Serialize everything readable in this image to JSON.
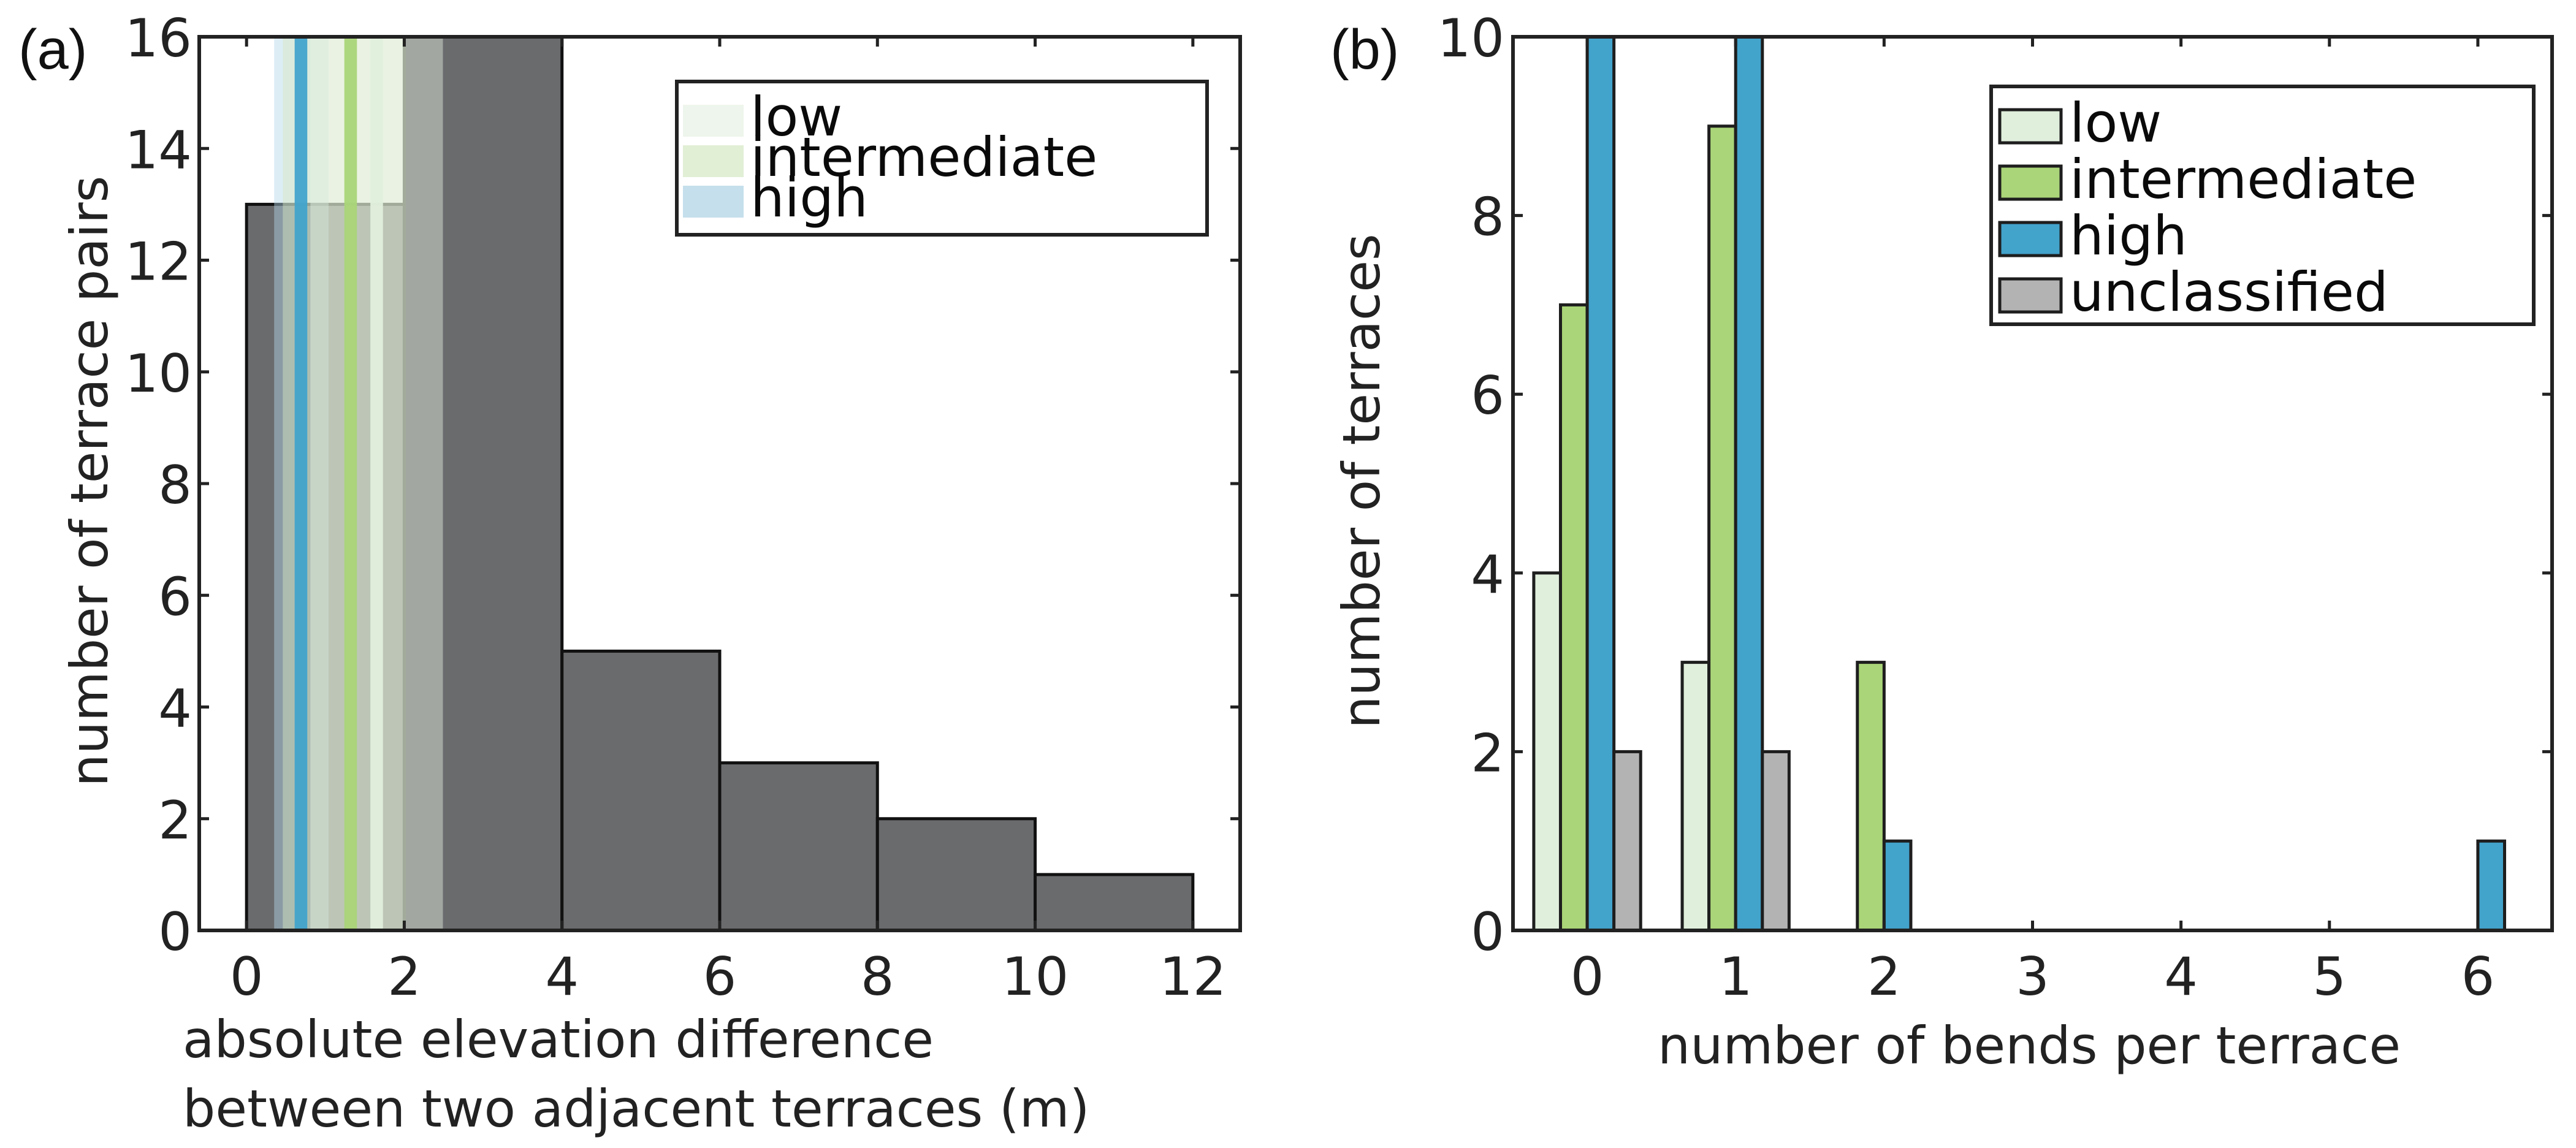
{
  "chart_data": [
    {
      "panel": "(a)",
      "type": "bar",
      "subtype": "histogram",
      "title": "",
      "xlabel_lines": [
        "absolute elevation difference",
        "between two adjacent terraces (m)"
      ],
      "ylabel": "number of terrace pairs",
      "xlim": [
        -0.6,
        12.6
      ],
      "ylim": [
        0,
        16
      ],
      "xticks": [
        0,
        2,
        4,
        6,
        8,
        10,
        12
      ],
      "yticks": [
        0,
        2,
        4,
        6,
        8,
        10,
        12,
        14,
        16
      ],
      "grid": false,
      "bins": [
        {
          "from": 0,
          "to": 2,
          "count": 13
        },
        {
          "from": 2,
          "to": 4,
          "count": 16
        },
        {
          "from": 4,
          "to": 6,
          "count": 5
        },
        {
          "from": 6,
          "to": 8,
          "count": 3
        },
        {
          "from": 8,
          "to": 10,
          "count": 2
        },
        {
          "from": 10,
          "to": 12,
          "count": 1
        }
      ],
      "bar_color": "#6a6b6d",
      "ranges": [
        {
          "name": "high",
          "from": 0.35,
          "to": 1.04,
          "center_from": 0.61,
          "center_to": 0.77,
          "band_color": "#b4d6e9",
          "line_color": "#42a3cb"
        },
        {
          "name": "intermediate",
          "from": 0.46,
          "to": 2.02,
          "center_from": 1.24,
          "center_to": 1.4,
          "band_color": "#d7e9c0",
          "line_color": "#aad578"
        },
        {
          "name": "low",
          "from": 0.81,
          "to": 2.49,
          "center_from": 1.57,
          "center_to": 1.73,
          "band_color": "#e7f1e2",
          "line_color": "#e0efdc"
        }
      ],
      "legend": {
        "placement": "top-right",
        "entries": [
          {
            "label": "low",
            "color": "#eef5ec"
          },
          {
            "label": "intermediate",
            "color": "#e1efd5"
          },
          {
            "label": "high",
            "color": "#c5dfec"
          }
        ]
      }
    },
    {
      "panel": "(b)",
      "type": "bar",
      "subtype": "grouped",
      "title": "",
      "xlabel": "number of bends per terrace",
      "ylabel": "number of terraces",
      "xlim": [
        -0.5,
        6.5
      ],
      "ylim": [
        0,
        10
      ],
      "categories": [
        0,
        1,
        2,
        3,
        4,
        5,
        6
      ],
      "xticks": [
        0,
        1,
        2,
        3,
        4,
        5,
        6
      ],
      "yticks": [
        0,
        2,
        4,
        6,
        8,
        10
      ],
      "grid": false,
      "series": [
        {
          "name": "low",
          "color": "#e0efdc",
          "values": [
            4,
            3,
            0,
            0,
            0,
            0,
            0
          ]
        },
        {
          "name": "intermediate",
          "color": "#aad578",
          "values": [
            7,
            9,
            3,
            0,
            0,
            0,
            0
          ]
        },
        {
          "name": "high",
          "color": "#42a3cb",
          "values": [
            10,
            10,
            1,
            0,
            0,
            0,
            1
          ]
        },
        {
          "name": "unclassified",
          "color": "#b3b3b3",
          "values": [
            2,
            2,
            0,
            0,
            0,
            0,
            0
          ]
        }
      ],
      "clipped_note": "high bars at 0 and 1 reach the top of the axis (>=10)",
      "legend": {
        "placement": "top-right",
        "entries": [
          {
            "label": "low",
            "color": "#e0efdc"
          },
          {
            "label": "intermediate",
            "color": "#aad578"
          },
          {
            "label": "high",
            "color": "#42a3cb"
          },
          {
            "label": "unclassified",
            "color": "#b3b3b3"
          }
        ]
      }
    }
  ]
}
